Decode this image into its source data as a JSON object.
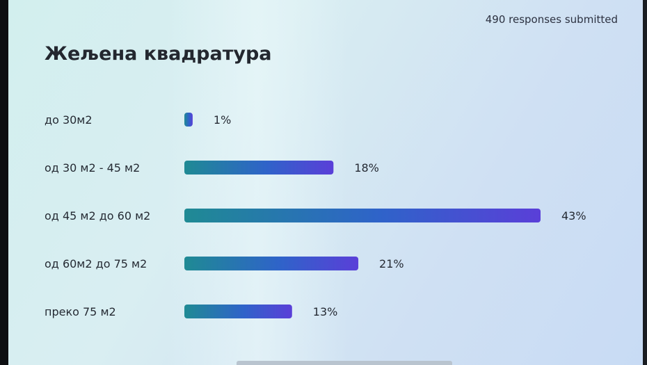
{
  "header": {
    "responses": "490 responses submitted"
  },
  "chart_data": {
    "type": "bar",
    "orientation": "horizontal",
    "title": "Жељена квадратура",
    "categories": [
      "до 30м2",
      "од 30 м2 - 45 м2",
      "од 45 м2 до 60 м2",
      "од 60м2 до 75 м2",
      "преко 75 м2"
    ],
    "values": [
      1,
      18,
      43,
      21,
      13
    ],
    "value_labels": [
      "1%",
      "18%",
      "43%",
      "21%",
      "13%"
    ],
    "unit": "%",
    "grid": false,
    "legend": "none",
    "colors": {
      "bar_start": "#1f8a94",
      "bar_mid": "#2f63c9",
      "bar_end": "#5a3fd8",
      "label": "#252a33"
    }
  }
}
